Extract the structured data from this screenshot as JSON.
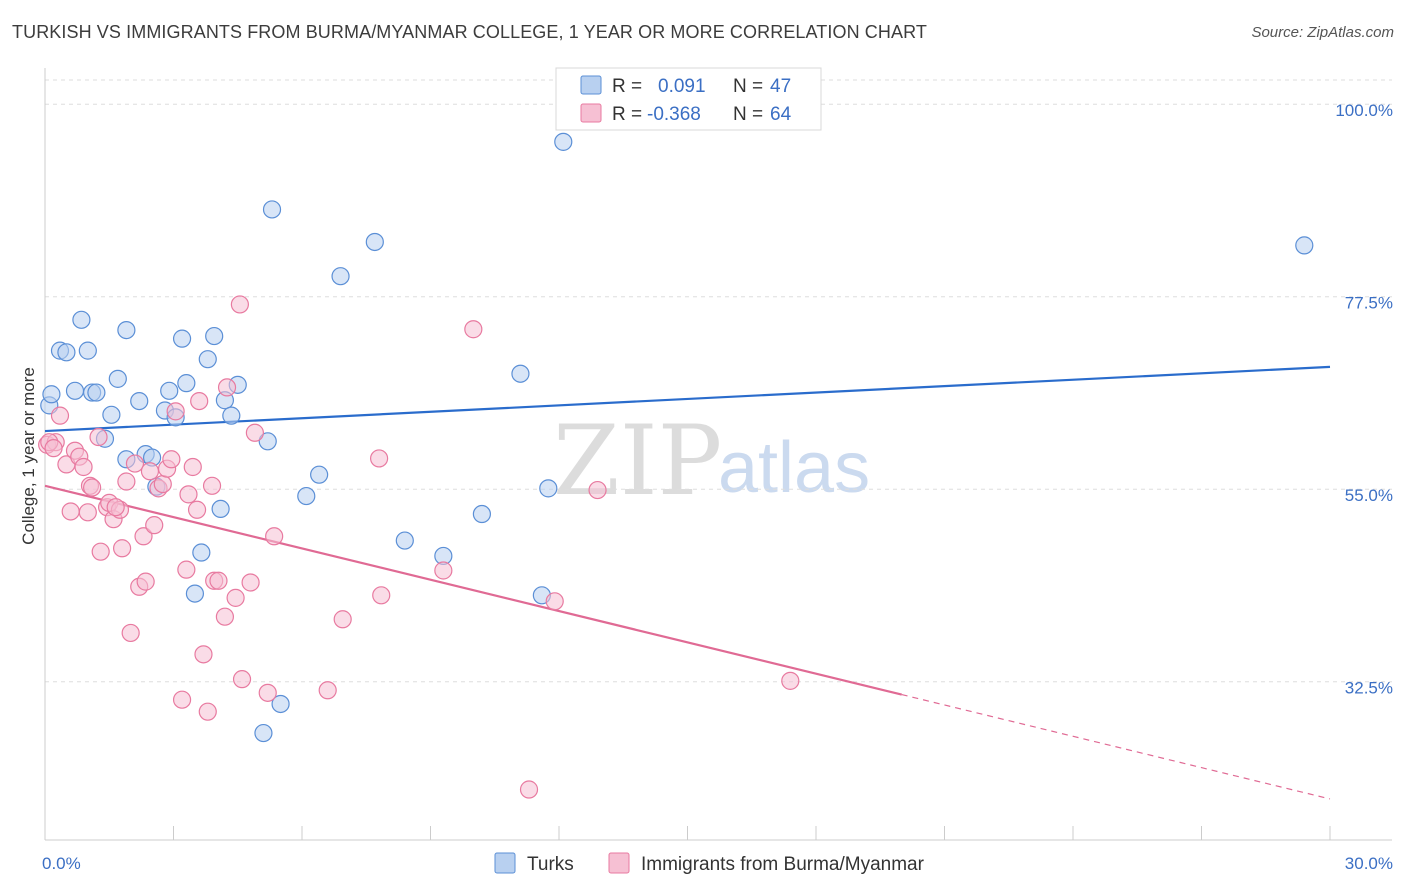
{
  "header": {
    "title": "TURKISH VS IMMIGRANTS FROM BURMA/MYANMAR COLLEGE, 1 YEAR OR MORE CORRELATION CHART",
    "source": "Source: ZipAtlas.com"
  },
  "watermark": {
    "zip": "ZIP",
    "atlas": "atlas"
  },
  "legend": {
    "rows": [
      {
        "r_label": "R =",
        "r_value": "0.091",
        "n_label": "N =",
        "n_value": "47"
      },
      {
        "r_label": "R =",
        "r_value": "-0.368",
        "n_label": "N =",
        "n_value": "64"
      }
    ]
  },
  "colors": {
    "blue": "#5b8fd6",
    "blue_fill": "#b8d0f0",
    "blue_line": "#2a6ccc",
    "pink": "#e87aa0",
    "pink_fill": "#f6c0d3",
    "pink_line": "#e06a94",
    "grid": "#dddddd",
    "axis_text": "#3b6fc4"
  },
  "chart_data": {
    "type": "scatter",
    "title": "TURKISH VS IMMIGRANTS FROM BURMA/MYANMAR COLLEGE, 1 YEAR OR MORE CORRELATION CHART",
    "xlabel": "",
    "ylabel": "College, 1 year or more",
    "xlim": [
      0,
      30
    ],
    "ylim": [
      14,
      104
    ],
    "x_tick_labels": [
      "0.0%",
      "30.0%"
    ],
    "y_ticks": [
      {
        "value": 100,
        "label": "100.0%"
      },
      {
        "value": 77.5,
        "label": "77.5%"
      },
      {
        "value": 55,
        "label": "55.0%"
      },
      {
        "value": 32.5,
        "label": "32.5%"
      }
    ],
    "grid": true,
    "legend_position": "top-center",
    "series": [
      {
        "name": "Turks",
        "trend": {
          "x": [
            0,
            30
          ],
          "y": [
            61.8,
            69.3
          ]
        },
        "points": [
          {
            "x": 0.1,
            "y": 64.8
          },
          {
            "x": 0.35,
            "y": 71.2
          },
          {
            "x": 0.5,
            "y": 71.0
          },
          {
            "x": 0.7,
            "y": 66.5
          },
          {
            "x": 0.85,
            "y": 74.8
          },
          {
            "x": 1.0,
            "y": 71.2
          },
          {
            "x": 1.1,
            "y": 66.3
          },
          {
            "x": 1.2,
            "y": 66.3
          },
          {
            "x": 1.4,
            "y": 60.9
          },
          {
            "x": 1.55,
            "y": 63.7
          },
          {
            "x": 1.7,
            "y": 67.9
          },
          {
            "x": 1.9,
            "y": 73.6
          },
          {
            "x": 1.9,
            "y": 58.5
          },
          {
            "x": 2.2,
            "y": 65.3
          },
          {
            "x": 2.35,
            "y": 59.1
          },
          {
            "x": 2.5,
            "y": 58.7
          },
          {
            "x": 2.6,
            "y": 55.3
          },
          {
            "x": 2.8,
            "y": 64.2
          },
          {
            "x": 2.9,
            "y": 66.5
          },
          {
            "x": 3.05,
            "y": 63.4
          },
          {
            "x": 3.2,
            "y": 72.6
          },
          {
            "x": 3.3,
            "y": 67.4
          },
          {
            "x": 3.5,
            "y": 42.8
          },
          {
            "x": 3.65,
            "y": 47.6
          },
          {
            "x": 3.8,
            "y": 70.2
          },
          {
            "x": 3.95,
            "y": 72.9
          },
          {
            "x": 4.1,
            "y": 52.7
          },
          {
            "x": 4.2,
            "y": 65.4
          },
          {
            "x": 4.35,
            "y": 63.6
          },
          {
            "x": 4.5,
            "y": 67.2
          },
          {
            "x": 5.1,
            "y": 26.5
          },
          {
            "x": 5.2,
            "y": 60.6
          },
          {
            "x": 5.3,
            "y": 87.7
          },
          {
            "x": 5.5,
            "y": 29.9
          },
          {
            "x": 6.1,
            "y": 54.2
          },
          {
            "x": 6.4,
            "y": 56.7
          },
          {
            "x": 6.9,
            "y": 79.9
          },
          {
            "x": 7.7,
            "y": 83.9
          },
          {
            "x": 8.4,
            "y": 49.0
          },
          {
            "x": 9.3,
            "y": 47.2
          },
          {
            "x": 10.2,
            "y": 52.1
          },
          {
            "x": 11.1,
            "y": 68.5
          },
          {
            "x": 11.6,
            "y": 42.6
          },
          {
            "x": 11.75,
            "y": 55.1
          },
          {
            "x": 12.1,
            "y": 95.6
          },
          {
            "x": 29.4,
            "y": 83.5
          },
          {
            "x": 0.15,
            "y": 66.1
          }
        ]
      },
      {
        "name": "Immigrants from Burma/Myanmar",
        "trend": {
          "x": [
            0,
            20
          ],
          "y": [
            55.4,
            31.0
          ]
        },
        "trend_dashed": {
          "x": [
            20,
            30
          ],
          "y": [
            31.0,
            18.8
          ]
        },
        "points": [
          {
            "x": 0.05,
            "y": 60.2
          },
          {
            "x": 0.25,
            "y": 60.5
          },
          {
            "x": 0.35,
            "y": 63.6
          },
          {
            "x": 0.5,
            "y": 57.9
          },
          {
            "x": 0.6,
            "y": 52.4
          },
          {
            "x": 0.7,
            "y": 59.5
          },
          {
            "x": 0.8,
            "y": 58.8
          },
          {
            "x": 0.9,
            "y": 57.6
          },
          {
            "x": 1.0,
            "y": 52.3
          },
          {
            "x": 1.05,
            "y": 55.4
          },
          {
            "x": 1.1,
            "y": 55.2
          },
          {
            "x": 1.25,
            "y": 61.1
          },
          {
            "x": 1.3,
            "y": 47.7
          },
          {
            "x": 1.45,
            "y": 52.9
          },
          {
            "x": 1.5,
            "y": 53.4
          },
          {
            "x": 1.6,
            "y": 51.5
          },
          {
            "x": 1.75,
            "y": 52.6
          },
          {
            "x": 1.8,
            "y": 48.1
          },
          {
            "x": 1.9,
            "y": 55.9
          },
          {
            "x": 2.0,
            "y": 38.2
          },
          {
            "x": 2.1,
            "y": 58.0
          },
          {
            "x": 2.2,
            "y": 43.6
          },
          {
            "x": 2.3,
            "y": 49.5
          },
          {
            "x": 2.35,
            "y": 44.2
          },
          {
            "x": 2.45,
            "y": 57.1
          },
          {
            "x": 2.55,
            "y": 50.8
          },
          {
            "x": 2.65,
            "y": 55.1
          },
          {
            "x": 2.75,
            "y": 55.6
          },
          {
            "x": 2.85,
            "y": 57.4
          },
          {
            "x": 2.95,
            "y": 58.5
          },
          {
            "x": 3.05,
            "y": 64.1
          },
          {
            "x": 3.2,
            "y": 30.4
          },
          {
            "x": 3.3,
            "y": 45.6
          },
          {
            "x": 3.35,
            "y": 54.4
          },
          {
            "x": 3.45,
            "y": 57.6
          },
          {
            "x": 3.55,
            "y": 52.6
          },
          {
            "x": 3.6,
            "y": 65.3
          },
          {
            "x": 3.7,
            "y": 35.7
          },
          {
            "x": 3.8,
            "y": 29.0
          },
          {
            "x": 3.9,
            "y": 55.4
          },
          {
            "x": 3.95,
            "y": 44.3
          },
          {
            "x": 4.05,
            "y": 44.3
          },
          {
            "x": 4.2,
            "y": 40.1
          },
          {
            "x": 4.25,
            "y": 66.9
          },
          {
            "x": 4.45,
            "y": 42.3
          },
          {
            "x": 4.55,
            "y": 76.6
          },
          {
            "x": 4.6,
            "y": 32.8
          },
          {
            "x": 4.8,
            "y": 44.1
          },
          {
            "x": 4.9,
            "y": 61.6
          },
          {
            "x": 5.2,
            "y": 31.2
          },
          {
            "x": 5.35,
            "y": 49.5
          },
          {
            "x": 6.6,
            "y": 31.5
          },
          {
            "x": 6.95,
            "y": 39.8
          },
          {
            "x": 7.8,
            "y": 58.6
          },
          {
            "x": 7.85,
            "y": 42.6
          },
          {
            "x": 9.3,
            "y": 45.5
          },
          {
            "x": 10.0,
            "y": 73.7
          },
          {
            "x": 11.3,
            "y": 19.9
          },
          {
            "x": 11.9,
            "y": 41.9
          },
          {
            "x": 12.9,
            "y": 54.9
          },
          {
            "x": 17.4,
            "y": 32.6
          },
          {
            "x": 0.1,
            "y": 60.5
          },
          {
            "x": 0.2,
            "y": 59.8
          },
          {
            "x": 1.65,
            "y": 52.9
          }
        ]
      }
    ]
  },
  "bottom_legend": {
    "items": [
      {
        "label": "Turks"
      },
      {
        "label": "Immigrants from Burma/Myanmar"
      }
    ]
  }
}
